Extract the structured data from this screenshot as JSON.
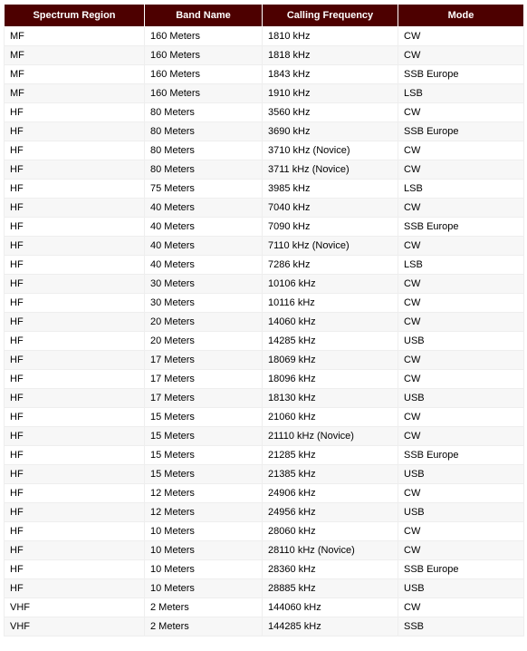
{
  "table": {
    "columns": [
      "Spectrum Region",
      "Band Name",
      "Calling Frequency",
      "Mode"
    ],
    "rows": [
      [
        "MF",
        "160 Meters",
        "1810 kHz",
        "CW"
      ],
      [
        "MF",
        "160 Meters",
        "1818 kHz",
        "CW"
      ],
      [
        "MF",
        "160 Meters",
        "1843 kHz",
        "SSB Europe"
      ],
      [
        "MF",
        "160 Meters",
        "1910 kHz",
        "LSB"
      ],
      [
        "HF",
        "80 Meters",
        "3560 kHz",
        "CW"
      ],
      [
        "HF",
        "80 Meters",
        "3690 kHz",
        "SSB Europe"
      ],
      [
        "HF",
        "80 Meters",
        "3710 kHz (Novice)",
        "CW"
      ],
      [
        "HF",
        "80 Meters",
        "3711 kHz (Novice)",
        "CW"
      ],
      [
        "HF",
        "75 Meters",
        "3985 kHz",
        "LSB"
      ],
      [
        "HF",
        "40 Meters",
        "7040 kHz",
        "CW"
      ],
      [
        "HF",
        "40 Meters",
        "7090 kHz",
        "SSB Europe"
      ],
      [
        "HF",
        "40 Meters",
        "7110 kHz (Novice)",
        "CW"
      ],
      [
        "HF",
        "40 Meters",
        "7286 kHz",
        "LSB"
      ],
      [
        "HF",
        "30 Meters",
        "10106 kHz",
        "CW"
      ],
      [
        "HF",
        "30 Meters",
        "10116 kHz",
        "CW"
      ],
      [
        "HF",
        "20 Meters",
        "14060 kHz",
        "CW"
      ],
      [
        "HF",
        "20 Meters",
        "14285 kHz",
        "USB"
      ],
      [
        "HF",
        "17 Meters",
        "18069 kHz",
        "CW"
      ],
      [
        "HF",
        "17 Meters",
        "18096 kHz",
        "CW"
      ],
      [
        "HF",
        "17 Meters",
        "18130 kHz",
        "USB"
      ],
      [
        "HF",
        "15 Meters",
        "21060 kHz",
        "CW"
      ],
      [
        "HF",
        "15 Meters",
        "21110 kHz (Novice)",
        "CW"
      ],
      [
        "HF",
        "15 Meters",
        "21285 kHz",
        "SSB Europe"
      ],
      [
        "HF",
        "15 Meters",
        "21385 kHz",
        "USB"
      ],
      [
        "HF",
        "12 Meters",
        "24906 kHz",
        "CW"
      ],
      [
        "HF",
        "12 Meters",
        "24956 kHz",
        "USB"
      ],
      [
        "HF",
        "10 Meters",
        "28060 kHz",
        "CW"
      ],
      [
        "HF",
        "10 Meters",
        "28110 kHz (Novice)",
        "CW"
      ],
      [
        "HF",
        "10 Meters",
        "28360 kHz",
        "SSB Europe"
      ],
      [
        "HF",
        "10 Meters",
        "28885 kHz",
        "USB"
      ],
      [
        "VHF",
        "2 Meters",
        "144060 kHz",
        "CW"
      ],
      [
        "VHF",
        "2 Meters",
        "144285 kHz",
        "SSB"
      ]
    ]
  }
}
